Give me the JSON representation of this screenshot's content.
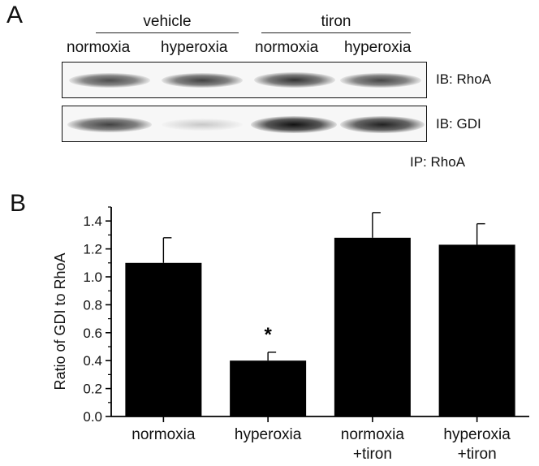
{
  "panel_a": {
    "letter": "A",
    "groups": [
      {
        "label": "vehicle"
      },
      {
        "label": "tiron"
      }
    ],
    "lanes": [
      "normoxia",
      "hyperoxia",
      "normoxia",
      "hyperoxia"
    ],
    "blots": [
      {
        "label": "IB: RhoA",
        "band_intensity": [
          0.75,
          0.8,
          0.85,
          0.78
        ]
      },
      {
        "label": "IB: GDI",
        "band_intensity": [
          0.8,
          0.15,
          0.95,
          0.9
        ]
      }
    ],
    "ip_label": "IP: RhoA"
  },
  "panel_b": {
    "letter": "B"
  },
  "chart_data": {
    "type": "bar",
    "categories": [
      [
        "normoxia"
      ],
      [
        "hyperoxia"
      ],
      [
        "normoxia",
        "+tiron"
      ],
      [
        "hyperoxia",
        "+tiron"
      ]
    ],
    "values": [
      1.1,
      0.4,
      1.28,
      1.23
    ],
    "errors": [
      0.18,
      0.06,
      0.18,
      0.15
    ],
    "annotations": [
      {
        "category_index": 1,
        "text": "*"
      }
    ],
    "xlabel": "",
    "ylabel": "Ratio of GDI to RhoA",
    "ylim": [
      0.0,
      1.5
    ],
    "yticks": [
      "0.0",
      "0.2",
      "0.4",
      "0.6",
      "0.8",
      "1.0",
      "1.2",
      "1.4"
    ],
    "bar_color": "#000000",
    "grid": false
  }
}
